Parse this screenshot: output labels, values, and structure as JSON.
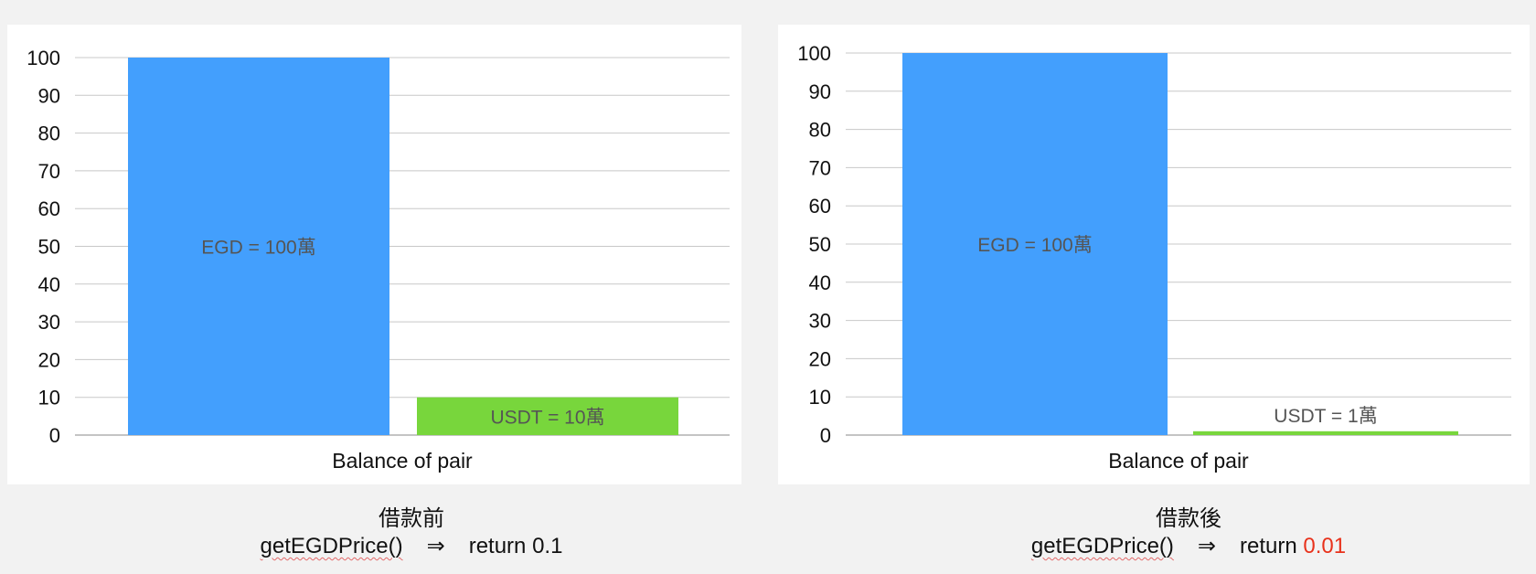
{
  "chart_data": [
    {
      "type": "bar",
      "xlabel": "Balance of pair",
      "ylim": [
        0,
        100
      ],
      "yticks": [
        0,
        10,
        20,
        30,
        40,
        50,
        60,
        70,
        80,
        90,
        100
      ],
      "grid": true,
      "legend": "none",
      "categories": [
        "EGD",
        "USDT"
      ],
      "values": [
        100,
        10
      ],
      "colors": [
        "#439ffd",
        "#78d63c"
      ],
      "bar_labels": [
        "EGD = 100萬",
        "USDT = 10萬"
      ]
    },
    {
      "type": "bar",
      "xlabel": "Balance of pair",
      "ylim": [
        0,
        100
      ],
      "yticks": [
        0,
        10,
        20,
        30,
        40,
        50,
        60,
        70,
        80,
        90,
        100
      ],
      "grid": true,
      "legend": "none",
      "categories": [
        "EGD",
        "USDT"
      ],
      "values": [
        100,
        1
      ],
      "colors": [
        "#439ffd",
        "#78d63c"
      ],
      "bar_labels": [
        "EGD = 100萬",
        "USDT = 1萬"
      ]
    }
  ],
  "captions": [
    {
      "title": "借款前",
      "function": "getEGDPrice()",
      "arrow": "⇒",
      "return_word": "return",
      "return_value": "0.1",
      "return_color": "#111111"
    },
    {
      "title": "借款後",
      "function": "getEGDPrice()",
      "arrow": "⇒",
      "return_word": "return",
      "return_value": "0.01",
      "return_color": "#e8321c"
    }
  ]
}
